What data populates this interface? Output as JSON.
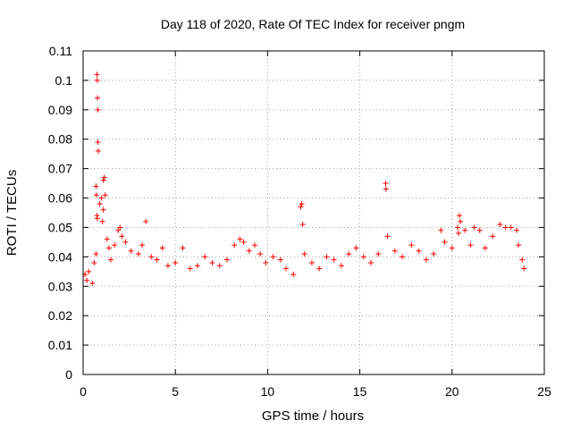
{
  "chart_data": {
    "type": "scatter",
    "title": "Day 118 of 2020, Rate Of TEC Index for receiver pngm",
    "xlabel": "GPS time / hours",
    "ylabel": "ROTI / TECUs",
    "xlim": [
      0,
      25
    ],
    "ylim": [
      0,
      0.11
    ],
    "xticks": [
      0,
      5,
      10,
      15,
      20,
      25
    ],
    "xtick_labels": [
      "0",
      "5",
      "10",
      "15",
      "20",
      "25"
    ],
    "yticks": [
      0,
      0.01,
      0.02,
      0.03,
      0.04,
      0.05,
      0.06,
      0.07,
      0.08,
      0.09,
      0.1,
      0.11
    ],
    "ytick_labels": [
      "0",
      "0.01",
      "0.02",
      "0.03",
      "0.04",
      "0.05",
      "0.06",
      "0.07",
      "0.08",
      "0.09",
      "0.1",
      "0.11"
    ],
    "grid": true,
    "marker": "plus",
    "color": "#ff0000",
    "series": [
      {
        "name": "ROTI",
        "points": [
          [
            0.1,
            0.034
          ],
          [
            0.2,
            0.032
          ],
          [
            0.3,
            0.035
          ],
          [
            0.5,
            0.031
          ],
          [
            0.6,
            0.038
          ],
          [
            0.7,
            0.041
          ],
          [
            0.75,
            0.102
          ],
          [
            0.77,
            0.1
          ],
          [
            0.78,
            0.094
          ],
          [
            0.8,
            0.09
          ],
          [
            0.8,
            0.079
          ],
          [
            0.82,
            0.076
          ],
          [
            0.7,
            0.064
          ],
          [
            0.72,
            0.061
          ],
          [
            0.75,
            0.054
          ],
          [
            0.77,
            0.053
          ],
          [
            0.9,
            0.058
          ],
          [
            1.0,
            0.06
          ],
          [
            1.1,
            0.066
          ],
          [
            1.15,
            0.067
          ],
          [
            1.2,
            0.061
          ],
          [
            1.1,
            0.056
          ],
          [
            1.05,
            0.052
          ],
          [
            1.3,
            0.046
          ],
          [
            1.4,
            0.043
          ],
          [
            1.5,
            0.039
          ],
          [
            1.7,
            0.044
          ],
          [
            1.9,
            0.049
          ],
          [
            2.0,
            0.05
          ],
          [
            2.1,
            0.047
          ],
          [
            2.3,
            0.045
          ],
          [
            2.6,
            0.042
          ],
          [
            3.0,
            0.041
          ],
          [
            3.2,
            0.044
          ],
          [
            3.4,
            0.052
          ],
          [
            3.7,
            0.04
          ],
          [
            4.0,
            0.039
          ],
          [
            4.3,
            0.043
          ],
          [
            4.6,
            0.037
          ],
          [
            5.0,
            0.038
          ],
          [
            5.4,
            0.043
          ],
          [
            5.8,
            0.036
          ],
          [
            6.2,
            0.037
          ],
          [
            6.6,
            0.04
          ],
          [
            7.0,
            0.038
          ],
          [
            7.4,
            0.037
          ],
          [
            7.8,
            0.039
          ],
          [
            8.2,
            0.044
          ],
          [
            8.5,
            0.046
          ],
          [
            8.7,
            0.045
          ],
          [
            9.0,
            0.042
          ],
          [
            9.3,
            0.044
          ],
          [
            9.6,
            0.041
          ],
          [
            9.9,
            0.038
          ],
          [
            10.3,
            0.04
          ],
          [
            10.7,
            0.039
          ],
          [
            11.0,
            0.036
          ],
          [
            11.4,
            0.034
          ],
          [
            11.8,
            0.057
          ],
          [
            11.85,
            0.058
          ],
          [
            11.9,
            0.051
          ],
          [
            12.0,
            0.041
          ],
          [
            12.4,
            0.038
          ],
          [
            12.8,
            0.036
          ],
          [
            13.2,
            0.04
          ],
          [
            13.6,
            0.039
          ],
          [
            14.0,
            0.037
          ],
          [
            14.4,
            0.041
          ],
          [
            14.8,
            0.043
          ],
          [
            15.2,
            0.04
          ],
          [
            15.6,
            0.038
          ],
          [
            16.0,
            0.041
          ],
          [
            16.4,
            0.065
          ],
          [
            16.42,
            0.063
          ],
          [
            16.5,
            0.047
          ],
          [
            16.9,
            0.042
          ],
          [
            17.3,
            0.04
          ],
          [
            17.8,
            0.044
          ],
          [
            18.2,
            0.042
          ],
          [
            18.6,
            0.039
          ],
          [
            19.0,
            0.041
          ],
          [
            19.4,
            0.049
          ],
          [
            19.6,
            0.045
          ],
          [
            20.0,
            0.043
          ],
          [
            20.3,
            0.05
          ],
          [
            20.35,
            0.048
          ],
          [
            20.4,
            0.054
          ],
          [
            20.45,
            0.052
          ],
          [
            20.7,
            0.049
          ],
          [
            21.0,
            0.044
          ],
          [
            21.2,
            0.05
          ],
          [
            21.5,
            0.049
          ],
          [
            21.8,
            0.043
          ],
          [
            22.2,
            0.047
          ],
          [
            22.6,
            0.051
          ],
          [
            22.9,
            0.05
          ],
          [
            23.2,
            0.05
          ],
          [
            23.5,
            0.049
          ],
          [
            23.6,
            0.044
          ],
          [
            23.8,
            0.039
          ],
          [
            23.9,
            0.036
          ]
        ]
      }
    ]
  }
}
